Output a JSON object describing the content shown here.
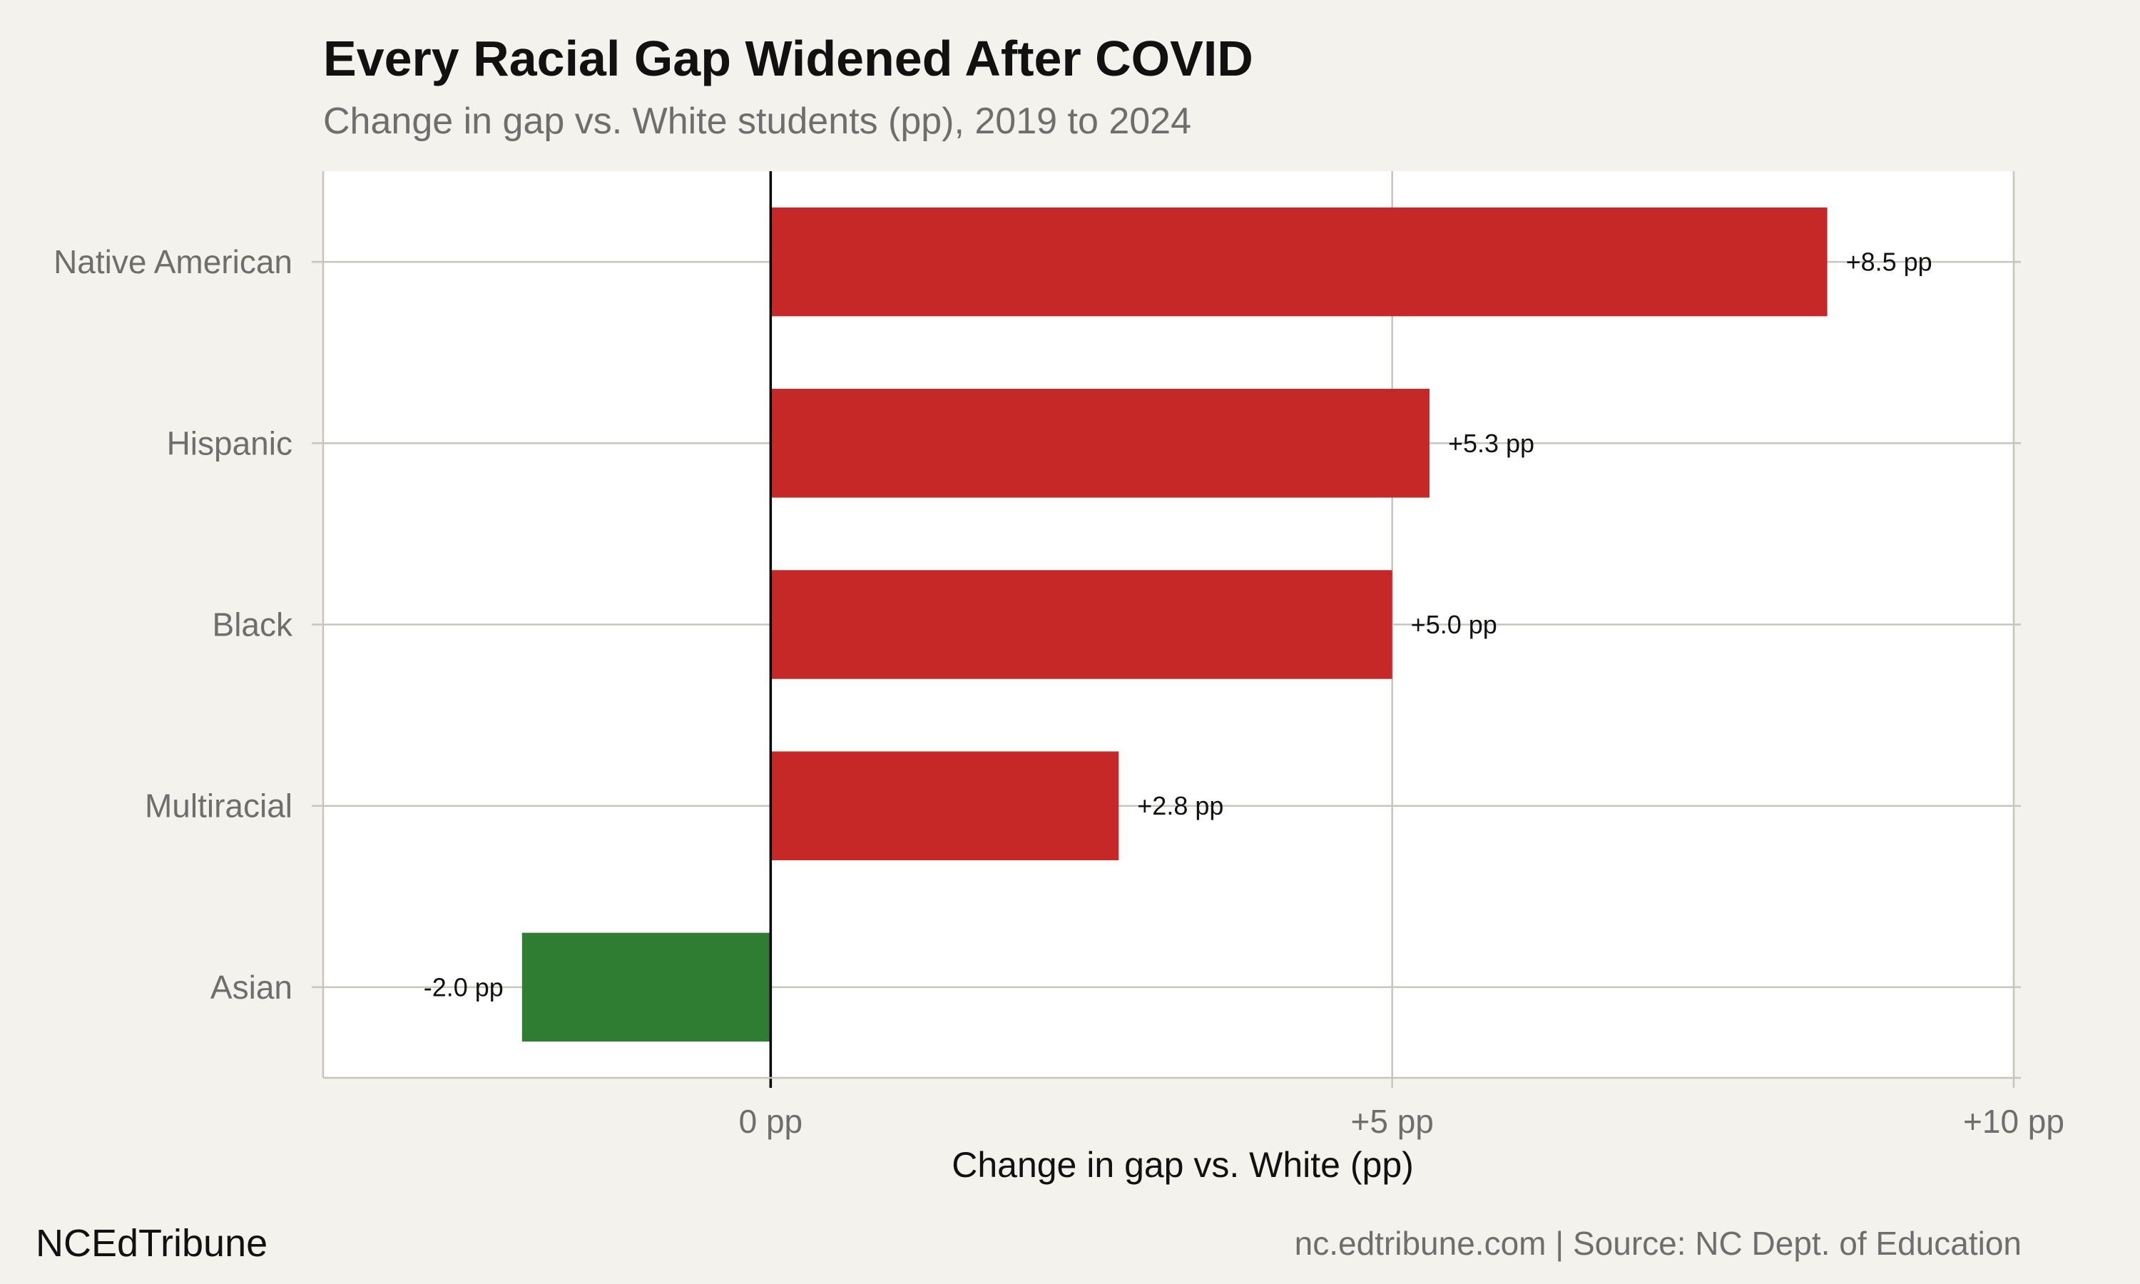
{
  "chart_data": {
    "type": "bar",
    "orientation": "horizontal",
    "title": "Every Racial Gap Widened After COVID",
    "subtitle": "Change in gap vs. White students (pp), 2019 to 2024",
    "xlabel": "Change in gap vs. White (pp)",
    "ylabel": "",
    "categories": [
      "Native American",
      "Hispanic",
      "Black",
      "Multiracial",
      "Asian"
    ],
    "values": [
      8.5,
      5.3,
      5.0,
      2.8,
      -2.0
    ],
    "data_labels": [
      "+8.5 pp",
      "+5.3 pp",
      "+5.0 pp",
      "+2.8 pp",
      "-2.0 pp"
    ],
    "xlim": [
      -3.6,
      10
    ],
    "xticks": [
      0,
      5,
      10
    ],
    "xtick_labels": [
      "0 pp",
      "+5 pp",
      "+10 pp"
    ],
    "grid": true,
    "legend": "none",
    "colors": {
      "positive": "#c62828",
      "negative": "#2e7d32",
      "zero_line": "#000000",
      "grid": "#c8c5bd",
      "plot_background": "#ffffff",
      "page_background": "#f4f2ed"
    }
  },
  "footer": {
    "brand": "NCEdTribune",
    "source": "nc.edtribune.com | Source: NC Dept. of Education"
  }
}
